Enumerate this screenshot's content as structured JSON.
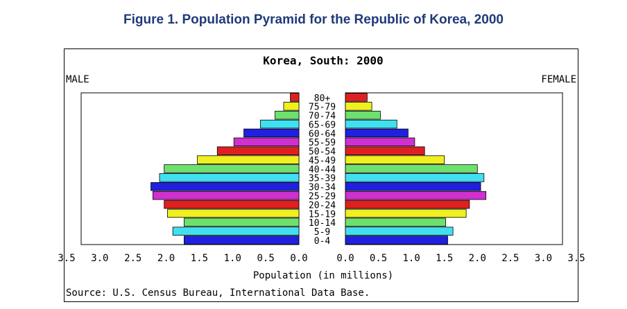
{
  "figure_title": "Figure 1. Population Pyramid for the Republic of Korea, 2000",
  "chart_data": {
    "type": "bar",
    "title": "Korea, South: 2000",
    "left_label": "MALE",
    "right_label": "FEMALE",
    "xlabel": "Population (in millions)",
    "source": "Source: U.S. Census Bureau, International Data Base.",
    "xlim": [
      0,
      3.5
    ],
    "left_ticks": [
      "3.5",
      "3.0",
      "2.5",
      "2.0",
      "1.5",
      "1.0",
      "0.5",
      "0.0"
    ],
    "right_ticks": [
      "0.0",
      "0.5",
      "1.0",
      "1.5",
      "2.0",
      "2.5",
      "3.0",
      "3.5"
    ],
    "categories": [
      "80+",
      "75-79",
      "70-74",
      "65-69",
      "60-64",
      "55-59",
      "50-54",
      "45-49",
      "40-44",
      "35-39",
      "30-34",
      "25-29",
      "20-24",
      "15-19",
      "10-14",
      "5-9",
      "0-4"
    ],
    "colors": [
      "#e02020",
      "#f0f020",
      "#6ee06e",
      "#40e0f0",
      "#2020e0",
      "#d030d0",
      "#e02020",
      "#f0f020",
      "#6ee06e",
      "#40e0f0",
      "#2020e0",
      "#d030d0",
      "#e02020",
      "#f0f020",
      "#6ee06e",
      "#40e0f0",
      "#2020e0"
    ],
    "series": [
      {
        "name": "MALE",
        "values": [
          0.13,
          0.23,
          0.36,
          0.58,
          0.83,
          0.98,
          1.23,
          1.53,
          2.03,
          2.1,
          2.23,
          2.2,
          2.03,
          1.98,
          1.73,
          1.9,
          1.73
        ]
      },
      {
        "name": "FEMALE",
        "values": [
          0.33,
          0.4,
          0.53,
          0.78,
          0.95,
          1.05,
          1.2,
          1.5,
          2.0,
          2.1,
          2.05,
          2.13,
          1.88,
          1.83,
          1.52,
          1.63,
          1.55
        ]
      }
    ]
  }
}
